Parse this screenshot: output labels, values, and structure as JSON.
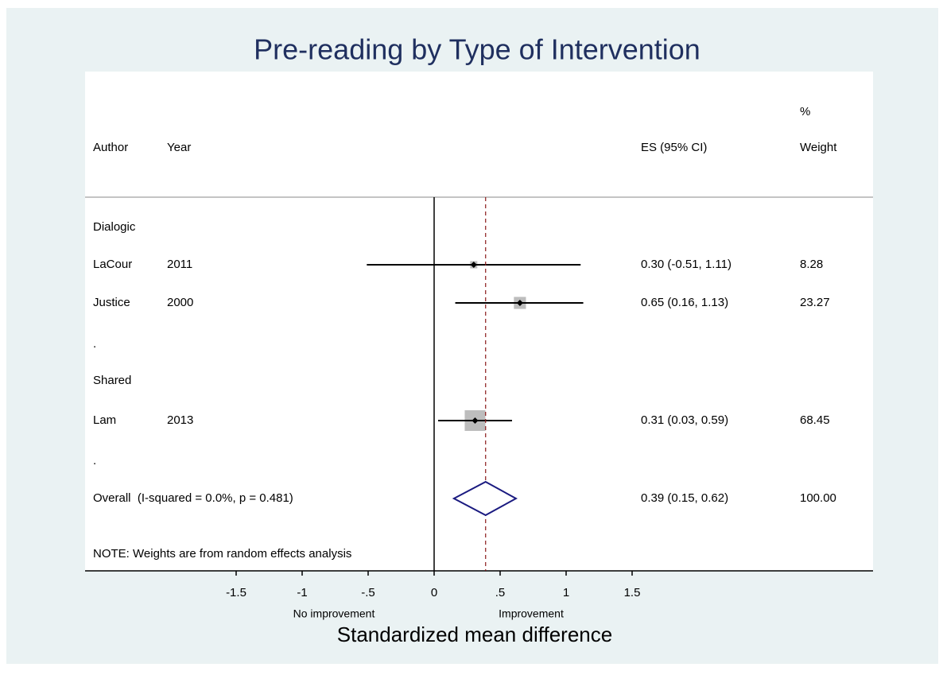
{
  "chart_data": {
    "type": "forest",
    "title": "Pre-reading by Type of Intervention",
    "xlabel": "Standardized mean difference",
    "left_note": "No improvement",
    "right_note": "Improvement",
    "header": {
      "author": "Author",
      "year": "Year",
      "es": "ES (95% CI)",
      "weight_top": "%",
      "weight": "Weight"
    },
    "rows": [
      {
        "label": "Dialogic"
      },
      {
        "author": "LaCour",
        "year": "2011",
        "es": 0.3,
        "ci": [
          -0.51,
          1.11
        ],
        "es_label": "0.30 (-0.51, 1.11)",
        "weight": 8.28
      },
      {
        "author": "Justice",
        "year": "2000",
        "es": 0.65,
        "ci": [
          0.16,
          1.13
        ],
        "es_label": "0.65 (0.16, 1.13)",
        "weight": 23.27
      },
      {
        "label": "."
      },
      {
        "label": "Shared"
      },
      {
        "author": "Lam",
        "year": "2013",
        "es": 0.31,
        "ci": [
          0.03,
          0.59
        ],
        "es_label": "0.31 (0.03, 0.59)",
        "weight": 68.45
      },
      {
        "label": "."
      },
      {
        "label": "Overall  (I-squared = 0.0%, p = 0.481)",
        "overall": true,
        "es": 0.39,
        "ci": [
          0.15,
          0.62
        ],
        "es_label": "0.39 (0.15, 0.62)",
        "weight": 100,
        "weight_label": "100.00"
      }
    ],
    "note": "NOTE: Weights are from random effects analysis",
    "xlim": [
      -1.5,
      1.5
    ],
    "xticks": [
      -1.5,
      -1,
      {
        "value": -0.5,
        "label": "-.5"
      },
      0,
      {
        "value": 0.5,
        "label": ".5"
      },
      1,
      1.5
    ],
    "box_color": "#bdbdbd",
    "ci_color": "#000000",
    "diamond_color": "#1a1a80",
    "reference_color": "#8b1a1a"
  }
}
